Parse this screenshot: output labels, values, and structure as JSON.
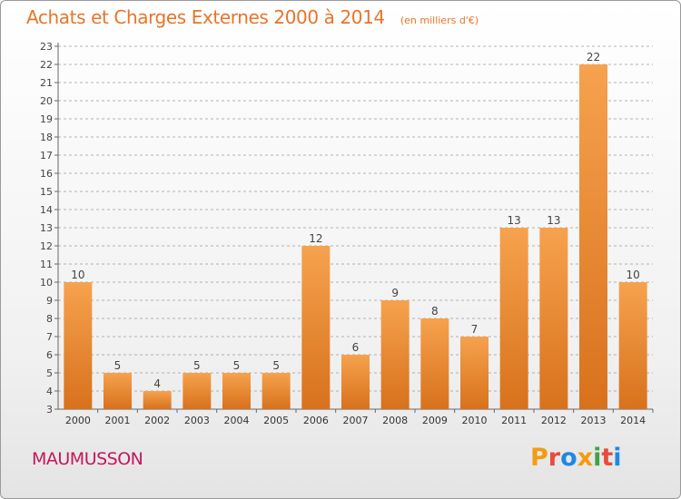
{
  "header": {
    "title": "Achats et Charges Externes 2000 à 2014",
    "unit": "(en milliers d'€)"
  },
  "footer": {
    "commune": "MAUMUSSON",
    "brand": "Proxiti",
    "brand_colors": [
      "#f39c12",
      "#e74c3c",
      "#1e88e5",
      "#f39c12",
      "#43a047",
      "#e74c3c",
      "#1e88e5"
    ]
  },
  "colors": {
    "bar_top": "#f6a24e",
    "bar_bottom": "#d8711c",
    "grid": "#9a9a9a",
    "title": "#e8742a",
    "commune": "#c2185b"
  },
  "chart_data": {
    "type": "bar",
    "title": "Achats et Charges Externes 2000 à 2014",
    "unit": "(en milliers d'€)",
    "categories": [
      "2000",
      "2001",
      "2002",
      "2003",
      "2004",
      "2005",
      "2006",
      "2007",
      "2008",
      "2009",
      "2010",
      "2011",
      "2012",
      "2013",
      "2014"
    ],
    "values": [
      10,
      5,
      4,
      5,
      5,
      5,
      12,
      6,
      9,
      8,
      7,
      13,
      13,
      22,
      10
    ],
    "ylim": [
      3,
      23
    ],
    "yticks": [
      3,
      4,
      5,
      6,
      7,
      8,
      9,
      10,
      11,
      12,
      13,
      14,
      15,
      16,
      17,
      18,
      19,
      20,
      21,
      22,
      23
    ],
    "grid": "horizontal dashed",
    "legend": "none"
  }
}
